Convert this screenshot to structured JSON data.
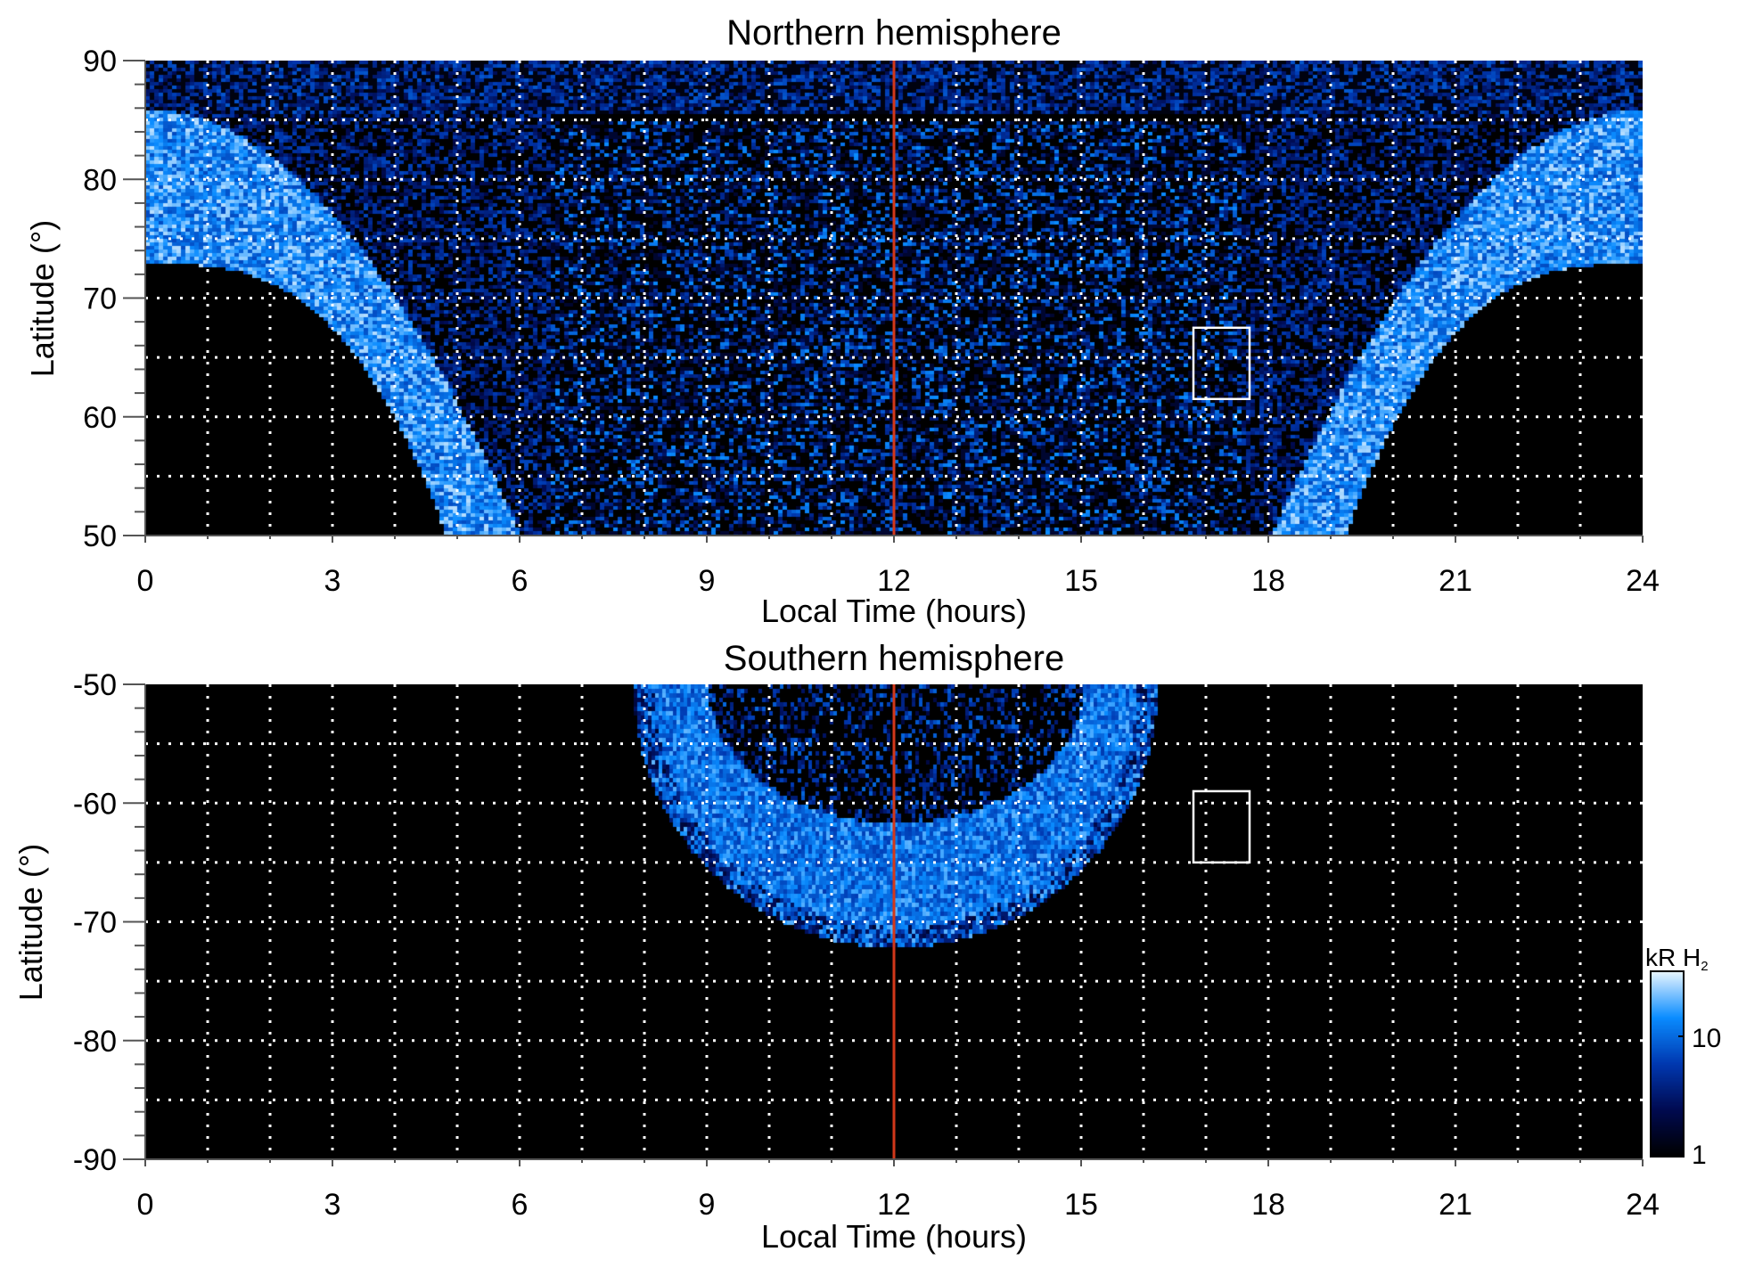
{
  "chart_data": [
    {
      "type": "heatmap",
      "title": "Northern hemisphere",
      "xlabel": "Local Time (hours)",
      "ylabel": "Latitude (°)",
      "xlim": [
        0,
        24
      ],
      "ylim": [
        50,
        90
      ],
      "xticks": [
        "0",
        "3",
        "6",
        "9",
        "12",
        "15",
        "18",
        "21",
        "24"
      ],
      "yticks": [
        "50",
        "60",
        "70",
        "80",
        "90"
      ],
      "grid": true,
      "reference_line_lt": 12,
      "box": {
        "lt": [
          16.8,
          17.7
        ],
        "lat": [
          61.5,
          67.5
        ]
      },
      "features": "auroral emission band from ~75-86° at LT 0/24 descending to 50° near LT 5-6 and 18-19; patchy emission between LT 6-18"
    },
    {
      "type": "heatmap",
      "title": "Southern hemisphere",
      "xlabel": "Local Time (hours)",
      "ylabel": "Latitude (°)",
      "xlim": [
        0,
        24
      ],
      "ylim": [
        -90,
        -50
      ],
      "xticks": [
        "0",
        "3",
        "6",
        "9",
        "12",
        "15",
        "18",
        "21",
        "24"
      ],
      "yticks": [
        "-50",
        "-60",
        "-70",
        "-80",
        "-90"
      ],
      "grid": true,
      "reference_line_lt": 12,
      "box": {
        "lt": [
          16.8,
          17.7
        ],
        "lat": [
          -65,
          -59
        ]
      },
      "features": "auroral oval arc centered at LT 12, outer edge ~-72° at noon reaching -50° at LT 8 and 16; inner edge ~-61° at noon"
    }
  ],
  "colorbar": {
    "label": "kR H",
    "label_sub": "2",
    "ticks": [
      "1",
      "10"
    ],
    "range": [
      1,
      30
    ],
    "scale": "log",
    "colors": [
      "#000000",
      "#000a50",
      "#0038b0",
      "#0a8cff",
      "#e8f6ff"
    ]
  },
  "colors": {
    "reference_line": "#d2381a",
    "grid": "#ffffff",
    "box": "#ffffff"
  }
}
